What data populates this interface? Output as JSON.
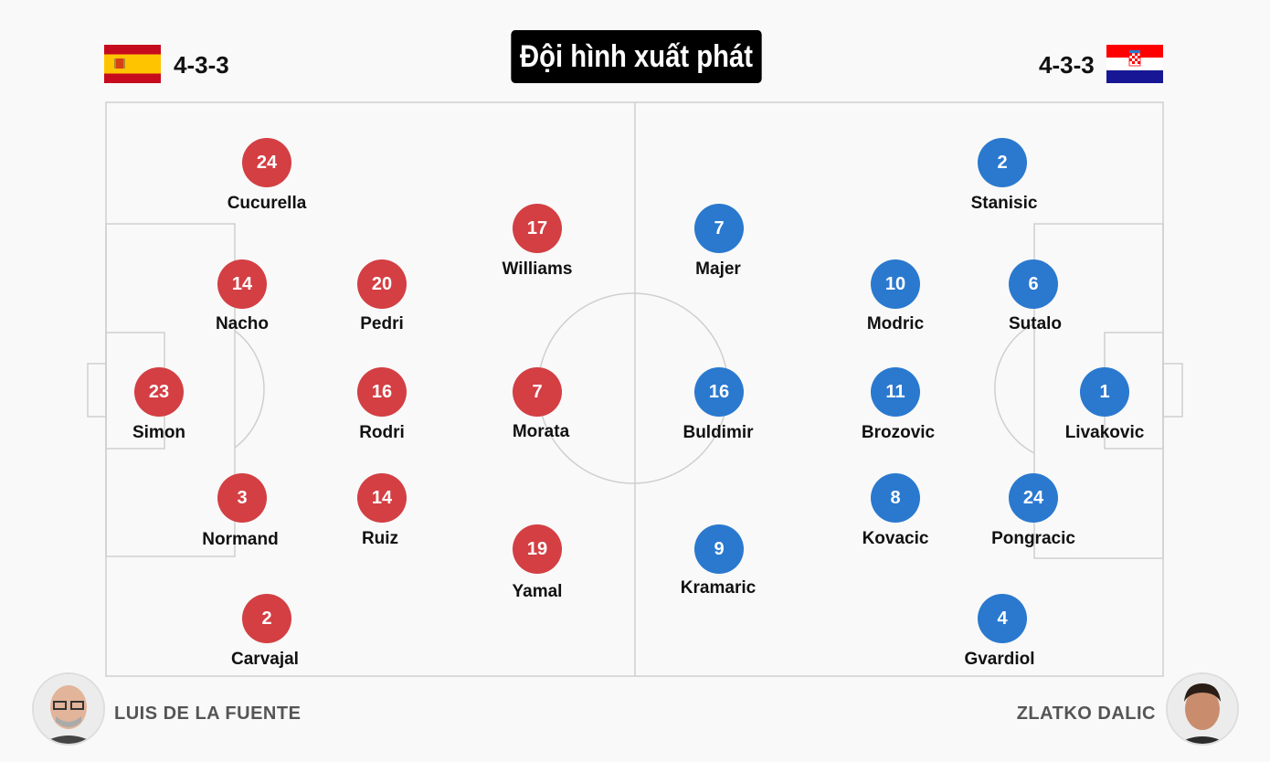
{
  "title": "Đội hình xuất phát",
  "colors": {
    "home": "#d33f43",
    "away": "#2a79cf"
  },
  "home": {
    "flag": "spain-flag",
    "formation": "4-3-3",
    "coach": "LUIS DE LA FUENTE",
    "players": [
      {
        "number": "24",
        "name": "Cucurella"
      },
      {
        "number": "17",
        "name": "Williams"
      },
      {
        "number": "14",
        "name": "Nacho"
      },
      {
        "number": "20",
        "name": "Pedri"
      },
      {
        "number": "23",
        "name": "Simon"
      },
      {
        "number": "16",
        "name": "Rodri"
      },
      {
        "number": "7",
        "name": "Morata"
      },
      {
        "number": "3",
        "name": "Normand"
      },
      {
        "number": "14",
        "name": "Ruiz"
      },
      {
        "number": "19",
        "name": "Yamal"
      },
      {
        "number": "2",
        "name": "Carvajal"
      }
    ]
  },
  "away": {
    "flag": "croatia-flag",
    "formation": "4-3-3",
    "coach": "ZLATKO DALIC",
    "players": [
      {
        "number": "2",
        "name": "Stanisic"
      },
      {
        "number": "7",
        "name": "Majer"
      },
      {
        "number": "10",
        "name": "Modric"
      },
      {
        "number": "6",
        "name": "Sutalo"
      },
      {
        "number": "16",
        "name": "Buldimir"
      },
      {
        "number": "11",
        "name": "Brozovic"
      },
      {
        "number": "1",
        "name": "Livakovic"
      },
      {
        "number": "8",
        "name": "Kovacic"
      },
      {
        "number": "24",
        "name": "Pongracic"
      },
      {
        "number": "9",
        "name": "Kramaric"
      },
      {
        "number": "4",
        "name": "Gvardiol"
      }
    ]
  }
}
